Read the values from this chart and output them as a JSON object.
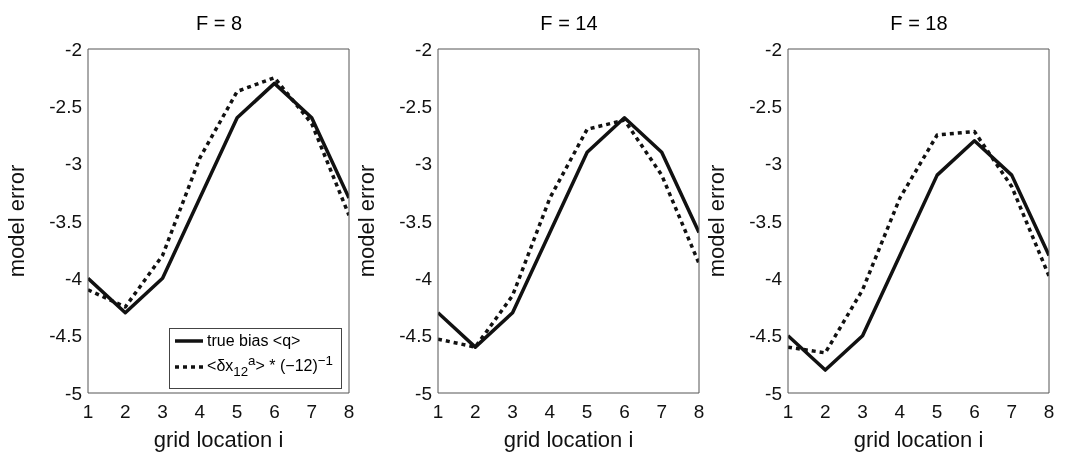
{
  "chart_data": [
    {
      "type": "line",
      "title": "F = 8",
      "xlabel": "grid location i",
      "ylabel": "model error",
      "x": [
        1,
        2,
        3,
        4,
        5,
        6,
        7,
        8
      ],
      "xlim": [
        1,
        8
      ],
      "xticks": [
        1,
        2,
        3,
        4,
        5,
        6,
        7,
        8
      ],
      "ylim": [
        -5,
        -2
      ],
      "yticks": [
        -5,
        -4.5,
        -4,
        -3.5,
        -3,
        -2.5,
        -2
      ],
      "legend": "bottom right",
      "marker": "none",
      "series": [
        {
          "name": "true bias <q>",
          "color": "#111111",
          "line_style": "solid",
          "values": [
            -4.0,
            -4.3,
            -4.0,
            -3.3,
            -2.6,
            -2.3,
            -2.6,
            -3.3
          ]
        },
        {
          "name": "<δx$_{12}$$^{a}$> * (−12)$^{−1}$",
          "color": "#111111",
          "line_style": "dotted",
          "values": [
            -4.1,
            -4.25,
            -3.8,
            -2.95,
            -2.37,
            -2.25,
            -2.65,
            -3.45
          ]
        }
      ]
    },
    {
      "type": "line",
      "title": "F = 14",
      "xlabel": "grid location i",
      "ylabel": "model error",
      "x": [
        1,
        2,
        3,
        4,
        5,
        6,
        7,
        8
      ],
      "xlim": [
        1,
        8
      ],
      "xticks": [
        1,
        2,
        3,
        4,
        5,
        6,
        7,
        8
      ],
      "ylim": [
        -5,
        -2
      ],
      "yticks": [
        -5,
        -4.5,
        -4,
        -3.5,
        -3,
        -2.5,
        -2
      ],
      "marker": "none",
      "series": [
        {
          "color": "#111111",
          "line_style": "solid",
          "values": [
            -4.3,
            -4.6,
            -4.3,
            -3.6,
            -2.9,
            -2.6,
            -2.9,
            -3.6
          ]
        },
        {
          "color": "#111111",
          "line_style": "dotted",
          "values": [
            -4.53,
            -4.6,
            -4.15,
            -3.3,
            -2.7,
            -2.62,
            -3.1,
            -3.87
          ]
        }
      ]
    },
    {
      "type": "line",
      "title": "F = 18",
      "xlabel": "grid location i",
      "ylabel": "model error",
      "x": [
        1,
        2,
        3,
        4,
        5,
        6,
        7,
        8
      ],
      "xlim": [
        1,
        8
      ],
      "xticks": [
        1,
        2,
        3,
        4,
        5,
        6,
        7,
        8
      ],
      "ylim": [
        -5,
        -2
      ],
      "yticks": [
        -5,
        -4.5,
        -4,
        -3.5,
        -3,
        -2.5,
        -2
      ],
      "marker": "none",
      "series": [
        {
          "color": "#111111",
          "line_style": "solid",
          "values": [
            -4.5,
            -4.8,
            -4.5,
            -3.8,
            -3.1,
            -2.8,
            -3.1,
            -3.8
          ]
        },
        {
          "color": "#111111",
          "line_style": "dotted",
          "values": [
            -4.6,
            -4.65,
            -4.1,
            -3.3,
            -2.75,
            -2.72,
            -3.2,
            -3.98
          ]
        }
      ]
    }
  ]
}
